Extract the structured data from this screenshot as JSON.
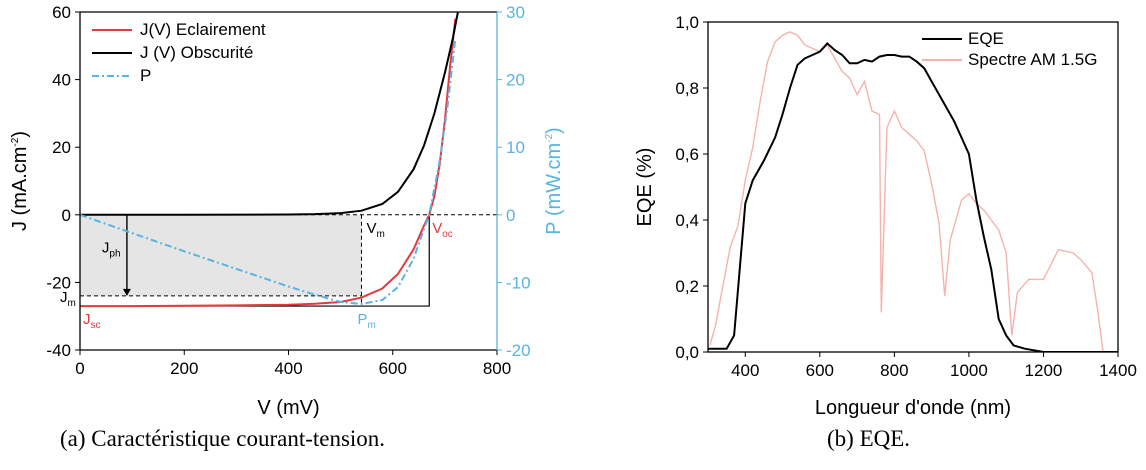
{
  "colors": {
    "illuminated": "#e8383d",
    "dark": "#000000",
    "power": "#5ab4e0",
    "spectrum": "#f4b3ad",
    "eqe": "#000000",
    "shade": "#e5e5e5"
  },
  "captions": {
    "left": "(a) Caractéristique courant-tension.",
    "right": "(b) EQE."
  },
  "chart_data": [
    {
      "type": "line",
      "xlabel": "V (mV)",
      "ylabel": "J (mA.cm",
      "ylabel_sup": "-2",
      "ylabel_end": ")",
      "y2label": "P (mW.cm",
      "y2label_sup": "-2",
      "y2label_end": ")",
      "xlim": [
        0,
        800
      ],
      "ylim": [
        -40,
        60
      ],
      "y2lim": [
        -20,
        30
      ],
      "xticks": [
        0,
        200,
        400,
        600,
        800
      ],
      "yticks": [
        -40,
        -20,
        0,
        20,
        40,
        60
      ],
      "y2ticks": [
        -20,
        -10,
        0,
        10,
        20,
        30
      ],
      "xtick_labels": [
        "0",
        "200",
        "400",
        "600",
        "800"
      ],
      "ytick_labels": [
        "-40",
        "-20",
        "0",
        "20",
        "40",
        "60"
      ],
      "y2tick_labels": [
        "-20",
        "-10",
        "0",
        "10",
        "20",
        "30"
      ],
      "legend": {
        "placement": "top-left",
        "entries": [
          "J(V) Eclairement",
          "J (V) Obscurité",
          "P"
        ]
      },
      "series": [
        {
          "name": "J(V) Eclairement",
          "axis": "left",
          "style": "solid",
          "x": [
            0,
            100,
            200,
            300,
            400,
            450,
            500,
            540,
            580,
            610,
            640,
            660,
            670,
            680,
            690,
            700,
            710,
            720
          ],
          "y": [
            -27,
            -27,
            -26.9,
            -26.8,
            -26.6,
            -26.3,
            -25.8,
            -24.5,
            -21.8,
            -17.5,
            -10.2,
            -3.2,
            0,
            5.5,
            15,
            28,
            44,
            58
          ]
        },
        {
          "name": "J (V) Obscurité",
          "axis": "left",
          "style": "solid",
          "x": [
            0,
            200,
            400,
            450,
            500,
            540,
            580,
            610,
            640,
            660,
            680,
            700,
            715,
            725
          ],
          "y": [
            0,
            0,
            0.1,
            0.2,
            0.5,
            1.2,
            3.2,
            6.8,
            13.5,
            20.5,
            30,
            42,
            52,
            60
          ]
        },
        {
          "name": "P",
          "axis": "right",
          "style": "dashdot",
          "x": [
            0,
            100,
            200,
            300,
            400,
            450,
            500,
            540,
            580,
            610,
            640,
            660,
            670,
            690,
            705,
            720
          ],
          "y": [
            0,
            -2.7,
            -5.4,
            -8.0,
            -10.6,
            -11.8,
            -12.9,
            -13.2,
            -12.6,
            -10.7,
            -6.5,
            -2.1,
            0,
            8,
            16,
            26
          ]
        }
      ],
      "annotations": {
        "vm": {
          "text": "V",
          "sub": "m",
          "value": 540
        },
        "voc": {
          "text": "V",
          "sub": "oc",
          "value": 670
        },
        "jph": {
          "text": "J",
          "sub": "ph",
          "x_value": 90
        },
        "jm": {
          "text": "J",
          "sub": "m",
          "value": -24
        },
        "jsc": {
          "text": "J",
          "sub": "sc",
          "value": -27
        },
        "pm": {
          "text": "P",
          "sub": "m"
        }
      }
    },
    {
      "type": "line",
      "xlabel": "Longueur d'onde (nm)",
      "ylabel": "EQE (%)",
      "xlim": [
        300,
        1400
      ],
      "ylim": [
        0,
        1.0
      ],
      "xticks": [
        400,
        600,
        800,
        1000,
        1200,
        1400
      ],
      "yticks": [
        0,
        0.2,
        0.4,
        0.6,
        0.8,
        1.0
      ],
      "xtick_labels": [
        "400",
        "600",
        "800",
        "1000",
        "1200",
        "1400"
      ],
      "ytick_labels": [
        "0,0",
        "0,2",
        "0,4",
        "0,6",
        "0,8",
        "1,0"
      ],
      "legend": {
        "placement": "top-right",
        "entries": [
          "EQE",
          "Spectre AM 1.5G"
        ]
      },
      "series": [
        {
          "name": "EQE",
          "x": [
            300,
            350,
            370,
            385,
            400,
            420,
            450,
            480,
            500,
            520,
            540,
            560,
            580,
            600,
            620,
            640,
            660,
            680,
            700,
            720,
            740,
            760,
            780,
            800,
            820,
            840,
            860,
            880,
            900,
            920,
            940,
            960,
            980,
            1000,
            1020,
            1040,
            1060,
            1080,
            1100,
            1120,
            1150,
            1200,
            1400
          ],
          "y": [
            0.01,
            0.01,
            0.05,
            0.25,
            0.45,
            0.52,
            0.58,
            0.65,
            0.72,
            0.8,
            0.87,
            0.89,
            0.9,
            0.91,
            0.935,
            0.915,
            0.9,
            0.875,
            0.875,
            0.885,
            0.88,
            0.895,
            0.9,
            0.9,
            0.895,
            0.895,
            0.88,
            0.86,
            0.82,
            0.78,
            0.74,
            0.7,
            0.65,
            0.6,
            0.46,
            0.35,
            0.25,
            0.1,
            0.05,
            0.02,
            0.01,
            0.0,
            0.0
          ]
        },
        {
          "name": "Spectre AM 1.5G",
          "x": [
            305,
            320,
            340,
            360,
            380,
            400,
            420,
            440,
            460,
            480,
            500,
            520,
            540,
            560,
            580,
            600,
            620,
            640,
            660,
            680,
            700,
            720,
            740,
            760,
            765,
            780,
            800,
            820,
            840,
            860,
            880,
            900,
            920,
            935,
            950,
            980,
            1000,
            1020,
            1040,
            1060,
            1080,
            1100,
            1115,
            1130,
            1160,
            1200,
            1240,
            1280,
            1300,
            1330,
            1345,
            1360
          ],
          "y": [
            0.02,
            0.08,
            0.2,
            0.32,
            0.38,
            0.52,
            0.62,
            0.76,
            0.88,
            0.94,
            0.96,
            0.97,
            0.96,
            0.93,
            0.92,
            0.91,
            0.93,
            0.89,
            0.85,
            0.83,
            0.78,
            0.82,
            0.73,
            0.72,
            0.12,
            0.68,
            0.73,
            0.68,
            0.66,
            0.64,
            0.61,
            0.51,
            0.39,
            0.17,
            0.34,
            0.46,
            0.48,
            0.45,
            0.43,
            0.4,
            0.37,
            0.3,
            0.05,
            0.18,
            0.22,
            0.22,
            0.31,
            0.3,
            0.28,
            0.24,
            0.13,
            0.0
          ]
        }
      ]
    }
  ]
}
